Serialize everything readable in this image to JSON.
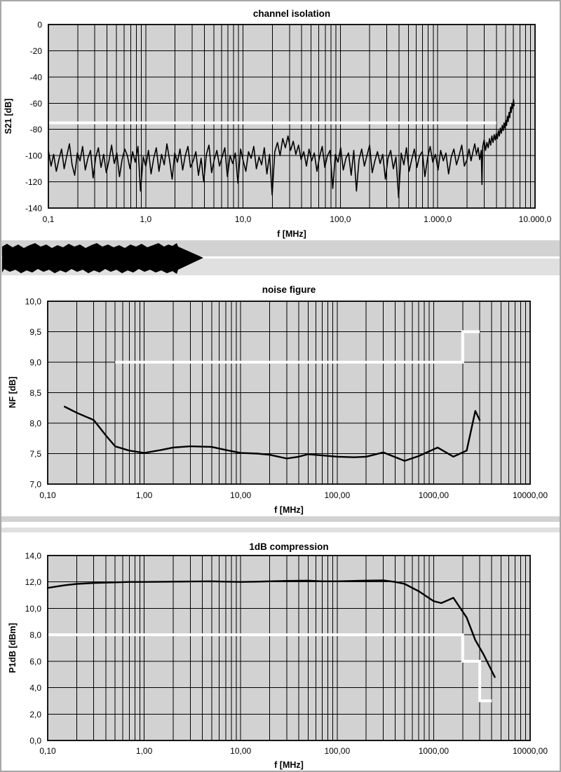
{
  "colors": {
    "plot_bg": "#d2d2d2",
    "grid": "#000000",
    "trace": "#000000",
    "limit_line": "#ffffff",
    "band_dark": "#d2d2d2",
    "band_light": "#e0e0e0",
    "page_border": "#a8a8a8"
  },
  "banner": {
    "type": "redacted-heading-arrow",
    "fill": "#000000"
  },
  "chart_data": [
    {
      "type": "line",
      "title": "channel isolation",
      "xlabel": "f [MHz]",
      "ylabel": "S21 [dB]",
      "x_scale": "log",
      "xlim": [
        0.1,
        10000
      ],
      "ylim": [
        -140,
        0
      ],
      "ystep": 20,
      "grid": true,
      "xtick_labels": [
        "0,1",
        "1,0",
        "10,0",
        "100,0",
        "1.000,0",
        "10.000,0"
      ],
      "ytick_labels": [
        "0",
        "-20",
        "-40",
        "-60",
        "-80",
        "-100",
        "-120",
        "-140"
      ],
      "limit": {
        "name": "spec-limit",
        "points": [
          [
            0.1,
            -75
          ],
          [
            4000,
            -75
          ]
        ]
      },
      "series": {
        "name": "S21",
        "noise_f_start": 0.1,
        "noise_f_end": 2000,
        "noise_dB": [
          -96,
          -108,
          -99,
          -112,
          -103,
          -95,
          -110,
          -100,
          -91,
          -107,
          -115,
          -98,
          -104,
          -93,
          -111,
          -102,
          -96,
          -117,
          -101,
          -94,
          -109,
          -99,
          -113,
          -104,
          -92,
          -106,
          -98,
          -116,
          -103,
          -95,
          -100,
          -110,
          -97,
          -105,
          -93,
          -127,
          -101,
          -108,
          -96,
          -114,
          -102,
          -94,
          -112,
          -99,
          -107,
          -91,
          -103,
          -118,
          -98,
          -105,
          -95,
          -111,
          -100,
          -93,
          -109,
          -104,
          -97,
          -115,
          -102,
          -120,
          -99,
          -92,
          -113,
          -103,
          -96,
          -108,
          -101,
          -94,
          -116,
          -100,
          -106,
          -98,
          -121,
          -95,
          -104,
          -112,
          -97,
          -102,
          -93,
          -110,
          -101,
          -107,
          -94,
          -114,
          -99,
          -130,
          -97,
          -90,
          -100,
          -87,
          -94,
          -85,
          -96,
          -89,
          -99,
          -92,
          -103,
          -97,
          -108,
          -95,
          -104,
          -98,
          -112,
          -101,
          -93,
          -109,
          -100,
          -96,
          -125,
          -99,
          -105,
          -94,
          -111,
          -102,
          -98,
          -115,
          -96,
          -127,
          -103,
          -95,
          -108,
          -100,
          -92,
          -113,
          -104,
          -97,
          -106,
          -99,
          -118,
          -102,
          -96,
          -110,
          -101,
          -132,
          -98,
          -107,
          -94,
          -112,
          -103,
          -95,
          -109,
          -100,
          -97,
          -116,
          -102,
          -93,
          -105,
          -99,
          -111,
          -96,
          -104,
          -98,
          -114,
          -101,
          -95,
          -107,
          -100,
          -92,
          -108,
          -103
        ],
        "tail_points": [
          [
            2100,
            -95
          ],
          [
            2200,
            -104
          ],
          [
            2300,
            -97
          ],
          [
            2400,
            -91
          ],
          [
            2500,
            -99
          ],
          [
            2600,
            -94
          ],
          [
            2700,
            -103
          ],
          [
            2800,
            -96
          ],
          [
            2850,
            -122
          ],
          [
            2900,
            -93
          ],
          [
            3000,
            -88
          ],
          [
            3100,
            -96
          ],
          [
            3200,
            -90
          ],
          [
            3300,
            -94
          ],
          [
            3400,
            -87
          ],
          [
            3500,
            -92
          ],
          [
            3600,
            -85
          ],
          [
            3700,
            -90
          ],
          [
            3800,
            -84
          ],
          [
            3900,
            -88
          ],
          [
            4000,
            -83
          ],
          [
            4100,
            -87
          ],
          [
            4200,
            -81
          ],
          [
            4300,
            -85
          ],
          [
            4400,
            -79
          ],
          [
            4500,
            -83
          ],
          [
            4600,
            -77
          ],
          [
            4700,
            -81
          ],
          [
            4800,
            -75
          ],
          [
            4900,
            -79
          ],
          [
            5000,
            -73
          ],
          [
            5100,
            -77
          ],
          [
            5200,
            -70
          ],
          [
            5300,
            -74
          ],
          [
            5400,
            -67
          ],
          [
            5500,
            -71
          ],
          [
            5600,
            -63
          ],
          [
            5700,
            -67
          ],
          [
            5800,
            -60
          ],
          [
            5900,
            -64
          ],
          [
            6000,
            -57
          ],
          [
            6100,
            -62
          ]
        ]
      }
    },
    {
      "type": "line",
      "title": "noise figure",
      "xlabel": "f [MHz]",
      "ylabel": "NF [dB]",
      "x_scale": "log",
      "xlim": [
        0.1,
        10000
      ],
      "ylim": [
        7.0,
        10.0
      ],
      "ystep": 0.5,
      "grid": true,
      "xtick_labels": [
        "0,10",
        "1,00",
        "10,00",
        "100,00",
        "1000,00",
        "10000,00"
      ],
      "ytick_labels": [
        "10,0",
        "9,5",
        "9,0",
        "8,5",
        "8,0",
        "7,5",
        "7,0"
      ],
      "limit": {
        "name": "spec-limit",
        "points": [
          [
            0.5,
            9.0
          ],
          [
            2000,
            9.0
          ],
          [
            2000,
            9.5
          ],
          [
            3000,
            9.5
          ]
        ]
      },
      "series": {
        "name": "NF",
        "points": [
          [
            0.15,
            8.27
          ],
          [
            0.2,
            8.17
          ],
          [
            0.3,
            8.05
          ],
          [
            0.4,
            7.8
          ],
          [
            0.5,
            7.62
          ],
          [
            0.7,
            7.55
          ],
          [
            1.0,
            7.51
          ],
          [
            1.5,
            7.56
          ],
          [
            2,
            7.6
          ],
          [
            3,
            7.62
          ],
          [
            5,
            7.61
          ],
          [
            7,
            7.56
          ],
          [
            10,
            7.51
          ],
          [
            15,
            7.5
          ],
          [
            20,
            7.48
          ],
          [
            30,
            7.42
          ],
          [
            40,
            7.45
          ],
          [
            50,
            7.49
          ],
          [
            70,
            7.47
          ],
          [
            100,
            7.45
          ],
          [
            150,
            7.44
          ],
          [
            200,
            7.45
          ],
          [
            300,
            7.52
          ],
          [
            500,
            7.38
          ],
          [
            700,
            7.46
          ],
          [
            1100,
            7.6
          ],
          [
            1600,
            7.45
          ],
          [
            2200,
            7.55
          ],
          [
            2700,
            8.2
          ],
          [
            3000,
            8.05
          ]
        ]
      }
    },
    {
      "type": "line",
      "title": "1dB compression",
      "xlabel": "f [MHz]",
      "ylabel": "P1dB [dBm]",
      "x_scale": "log",
      "xlim": [
        0.1,
        10000
      ],
      "ylim": [
        0.0,
        14.0
      ],
      "ystep": 2.0,
      "grid": true,
      "xtick_labels": [
        "0,10",
        "1,00",
        "10,00",
        "100,00",
        "1000,00",
        "10000,00"
      ],
      "ytick_labels": [
        "14,0",
        "12,0",
        "10,0",
        "8,0",
        "6,0",
        "4,0",
        "2,0",
        "0,0"
      ],
      "limit": {
        "name": "spec-limit",
        "points": [
          [
            0.1,
            8.0
          ],
          [
            2000,
            8.0
          ],
          [
            2000,
            6.0
          ],
          [
            3000,
            6.0
          ],
          [
            3000,
            3.0
          ],
          [
            4000,
            3.0
          ]
        ]
      },
      "series": {
        "name": "P1dB",
        "points": [
          [
            0.1,
            11.55
          ],
          [
            0.15,
            11.75
          ],
          [
            0.2,
            11.85
          ],
          [
            0.3,
            11.92
          ],
          [
            0.5,
            11.97
          ],
          [
            0.7,
            12.0
          ],
          [
            1,
            12.0
          ],
          [
            2,
            12.02
          ],
          [
            3,
            12.03
          ],
          [
            5,
            12.05
          ],
          [
            7,
            12.02
          ],
          [
            10,
            12.0
          ],
          [
            15,
            12.02
          ],
          [
            20,
            12.05
          ],
          [
            30,
            12.08
          ],
          [
            50,
            12.1
          ],
          [
            70,
            12.05
          ],
          [
            100,
            12.05
          ],
          [
            150,
            12.08
          ],
          [
            200,
            12.1
          ],
          [
            300,
            12.12
          ],
          [
            400,
            12.0
          ],
          [
            500,
            11.85
          ],
          [
            700,
            11.3
          ],
          [
            1000,
            10.55
          ],
          [
            1200,
            10.4
          ],
          [
            1600,
            10.8
          ],
          [
            2200,
            9.3
          ],
          [
            2700,
            7.6
          ],
          [
            3300,
            6.5
          ],
          [
            4300,
            4.8
          ]
        ]
      }
    }
  ]
}
